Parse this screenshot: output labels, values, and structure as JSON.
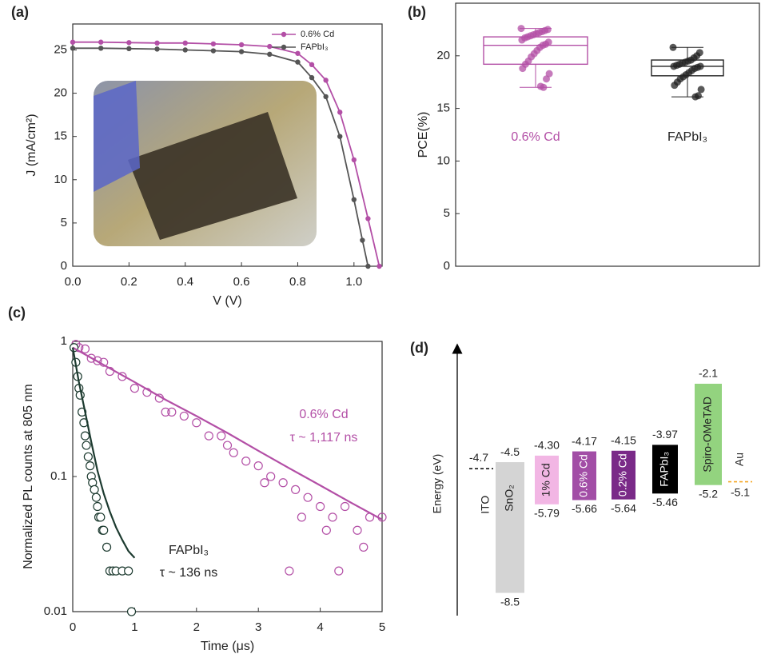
{
  "chart_data": [
    {
      "type": "line",
      "panel_label": "(a)",
      "x_label": "V (V)",
      "y_label": "J (mA/cm²)",
      "xlim": [
        0,
        1.1
      ],
      "xticks": [
        {
          "value": 0,
          "label": "0.0"
        },
        0.2,
        0.4,
        0.6,
        0.8,
        {
          "value": 1,
          "label": "1.0"
        }
      ],
      "ylim": [
        0,
        28
      ],
      "yticks": [
        0,
        5,
        10,
        15,
        20,
        25
      ],
      "legend": "upper right",
      "series": [
        {
          "name": "0.6% Cd",
          "color": "#b34fa6",
          "x": [
            0,
            0.1,
            0.2,
            0.3,
            0.4,
            0.5,
            0.6,
            0.7,
            0.8,
            0.85,
            0.9,
            0.95,
            1.0,
            1.05,
            1.09
          ],
          "values": [
            25.9,
            25.9,
            25.85,
            25.8,
            25.8,
            25.7,
            25.6,
            25.4,
            24.6,
            23.3,
            21.5,
            17.8,
            12.3,
            5.5,
            0
          ]
        },
        {
          "name": "FAPbI₃",
          "color": "#555555",
          "x": [
            0,
            0.1,
            0.2,
            0.3,
            0.4,
            0.5,
            0.6,
            0.7,
            0.8,
            0.85,
            0.9,
            0.95,
            1.0,
            1.03,
            1.05
          ],
          "values": [
            25.2,
            25.2,
            25.15,
            25.1,
            25.0,
            24.9,
            24.8,
            24.5,
            23.6,
            21.8,
            19.6,
            15.0,
            7.7,
            3.0,
            0
          ]
        }
      ]
    },
    {
      "type": "box",
      "panel_label": "(b)",
      "y_label": "PCE(%)",
      "ylim": [
        0,
        25
      ],
      "yticks": [
        0,
        5,
        10,
        15,
        20
      ],
      "categories": [
        "0.6% Cd",
        "FAPbI₃"
      ],
      "boxes": [
        {
          "color": "#b34fa6",
          "min": 17.0,
          "q1": 19.2,
          "median": 21.0,
          "q3": 21.8,
          "max": 22.6,
          "points": [
            22.6,
            22.5,
            22.4,
            22.3,
            22.2,
            22.1,
            22.0,
            21.9,
            21.8,
            21.7,
            21.5,
            21.3,
            21.1,
            21.0,
            20.8,
            20.5,
            20.2,
            19.9,
            19.5,
            19.2,
            18.8,
            18.3,
            17.8,
            17.0,
            17.1
          ]
        },
        {
          "color": "#222222",
          "min": 16.1,
          "q1": 18.1,
          "median": 19.0,
          "q3": 19.6,
          "max": 20.8,
          "points": [
            20.8,
            20.3,
            20.0,
            19.8,
            19.6,
            19.5,
            19.4,
            19.3,
            19.2,
            19.1,
            19.0,
            19.0,
            18.9,
            18.8,
            18.6,
            18.4,
            18.2,
            18.0,
            17.8,
            17.5,
            17.2,
            16.8,
            16.2,
            16.1
          ]
        }
      ]
    },
    {
      "type": "scatter",
      "panel_label": "(c)",
      "x_label": "Time (μs)",
      "y_label": "Normalized PL counts at 805 nm",
      "log_y": true,
      "xlim": [
        0,
        5
      ],
      "xticks": [
        0,
        1,
        2,
        3,
        4,
        5
      ],
      "ylim": [
        0.01,
        1
      ],
      "yticks": [
        0.01,
        0.1,
        1
      ],
      "series": [
        {
          "color": "#b34fa6",
          "fill": "none",
          "x": [
            0.05,
            0.1,
            0.2,
            0.3,
            0.4,
            0.5,
            0.6,
            0.8,
            1.0,
            1.2,
            1.4,
            1.6,
            1.8,
            2.0,
            2.2,
            2.4,
            2.6,
            2.8,
            3.0,
            3.2,
            3.4,
            3.6,
            3.8,
            4.0,
            4.2,
            4.4,
            4.6,
            4.8,
            5.0,
            1.5,
            2.5,
            3.1,
            3.7,
            4.1,
            4.7,
            3.5,
            4.3
          ],
          "values": [
            0.95,
            0.9,
            0.88,
            0.75,
            0.72,
            0.7,
            0.6,
            0.55,
            0.45,
            0.42,
            0.38,
            0.3,
            0.28,
            0.25,
            0.2,
            0.2,
            0.15,
            0.13,
            0.12,
            0.1,
            0.09,
            0.08,
            0.07,
            0.06,
            0.05,
            0.06,
            0.04,
            0.05,
            0.05,
            0.3,
            0.17,
            0.09,
            0.05,
            0.04,
            0.03,
            0.02,
            0.02
          ],
          "fit_x": [
            0,
            0.5,
            1,
            1.5,
            2,
            2.5,
            3,
            3.5,
            4,
            4.5,
            5
          ],
          "fit_values": [
            0.9,
            0.67,
            0.5,
            0.37,
            0.28,
            0.21,
            0.155,
            0.115,
            0.086,
            0.064,
            0.048
          ]
        },
        {
          "color": "#1d3b30",
          "fill": "#ffffff",
          "x": [
            0.02,
            0.05,
            0.08,
            0.1,
            0.12,
            0.15,
            0.18,
            0.2,
            0.22,
            0.25,
            0.28,
            0.3,
            0.32,
            0.35,
            0.38,
            0.4,
            0.42,
            0.45,
            0.48,
            0.5,
            0.55,
            0.6,
            0.65,
            0.7,
            0.8,
            0.9,
            0.95
          ],
          "values": [
            0.9,
            0.7,
            0.55,
            0.45,
            0.4,
            0.3,
            0.25,
            0.2,
            0.17,
            0.14,
            0.12,
            0.1,
            0.09,
            0.08,
            0.07,
            0.06,
            0.05,
            0.05,
            0.04,
            0.04,
            0.03,
            0.02,
            0.02,
            0.02,
            0.02,
            0.02,
            0.01
          ],
          "fit_x": [
            0,
            0.1,
            0.2,
            0.3,
            0.4,
            0.5,
            0.6,
            0.7,
            0.8,
            0.9,
            1.0
          ],
          "fit_values": [
            0.9,
            0.5,
            0.3,
            0.18,
            0.11,
            0.075,
            0.055,
            0.042,
            0.034,
            0.028,
            0.025
          ]
        }
      ],
      "annotations": [
        "0.6% Cd",
        "τ ~ 1,117 ns",
        "FAPbI₃",
        "τ ~ 136 ns"
      ]
    },
    {
      "type": "energy",
      "panel_label": "(d)",
      "y_label": "Energy (eV)",
      "ylim": [
        -9,
        -1
      ],
      "categories": [
        "ITO",
        "SnO₂",
        "1% Cd",
        "0.6% Cd",
        "0.2% Cd",
        "FAPbI₃",
        "Spiro-OMeTAD",
        "Au"
      ],
      "colors": [
        "#000000",
        "#d4d4d4",
        "#f2b6e4",
        "#a24ea6",
        "#7a2a88",
        "#000000",
        "#93d37f",
        "#f5a623"
      ],
      "top": [
        -4.7,
        -4.5,
        -4.3,
        -4.17,
        -4.15,
        -3.97,
        -2.1,
        -5.1
      ],
      "top_labels": [
        "-4.7",
        "-4.5",
        "-4.30",
        "-4.17",
        "-4.15",
        "-3.97",
        "-2.1",
        "-5.1"
      ],
      "bottom": [
        null,
        -8.5,
        -5.79,
        -5.66,
        -5.64,
        -5.46,
        -5.2,
        null
      ],
      "bottom_labels": [
        null,
        "-8.5",
        "-5.79",
        "-5.66",
        "-5.64",
        "-5.46",
        "-5.2",
        null
      ]
    }
  ]
}
